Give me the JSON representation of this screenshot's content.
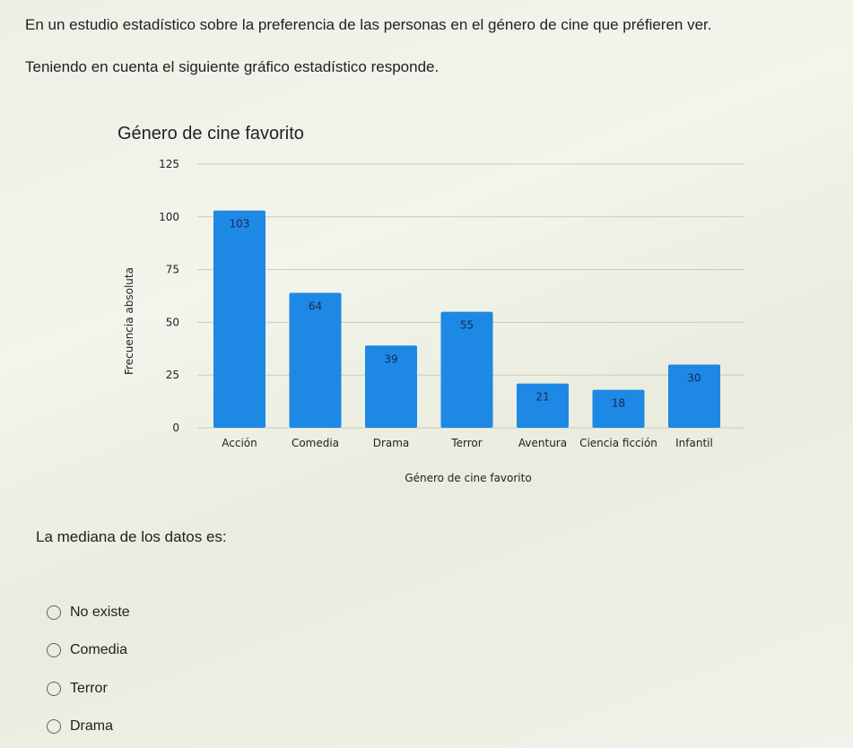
{
  "question": {
    "line1": "En un estudio estadístico sobre la preferencia de las personas en el género de cine que préfieren ver.",
    "line2": "Teniendo en cuenta el siguiente gráfico estadístico responde."
  },
  "chart_data": {
    "type": "bar",
    "title": "Género de cine favorito",
    "xlabel": "Género de cine favorito",
    "ylabel": "Frecuencia absoluta",
    "categories": [
      "Acción",
      "Comedia",
      "Drama",
      "Terror",
      "Aventura",
      "Ciencia ficción",
      "Infantil"
    ],
    "values": [
      103,
      64,
      39,
      55,
      21,
      18,
      30
    ],
    "yticks": [
      0,
      25,
      50,
      75,
      100,
      125
    ],
    "ylim": [
      0,
      125
    ],
    "grid": true,
    "bar_color": "#1e88e5"
  },
  "median_question": "La mediana de los datos es:",
  "options": [
    "No existe",
    "Comedia",
    "Terror",
    "Drama"
  ]
}
